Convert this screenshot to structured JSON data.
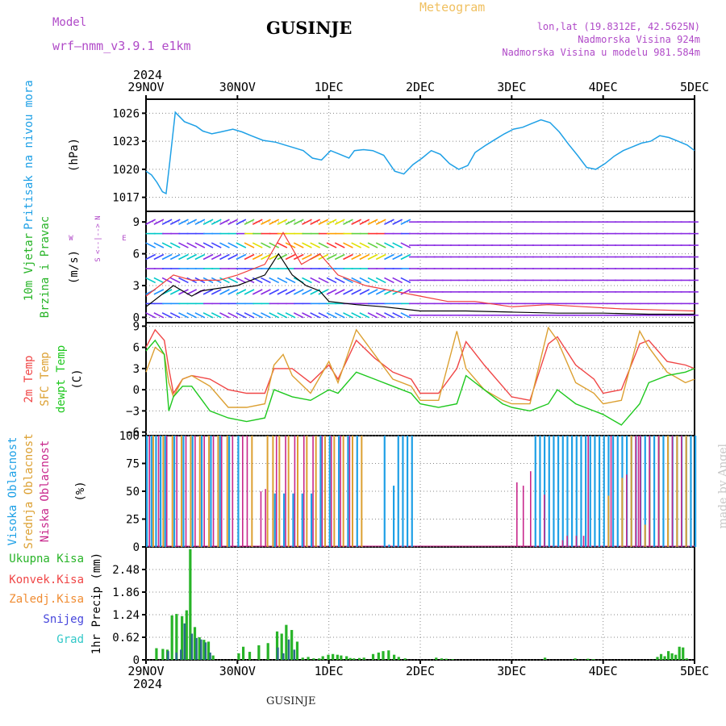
{
  "header": {
    "model_label": "Model",
    "model_version": "wrf–nmm_v3.9.1  e1km",
    "title": "GUSINJE",
    "meteogram_label": "Meteogram",
    "lonlat": "lon,lat (19.8312E, 42.5625N)",
    "elevation": "Nadmorska Visina 924m",
    "model_elevation": "Nadmorska Visina u modelu 981.584m",
    "made_by": "made by Angel",
    "bottom_label": "GUSINJE"
  },
  "time_axis": {
    "year": "2024",
    "ticks": [
      "29NOV",
      "30NOV",
      "1DEC",
      "2DEC",
      "3DEC",
      "4DEC",
      "5DEC"
    ]
  },
  "colors": {
    "pressure": "#1ea0e6",
    "wind_speed": "#000000",
    "wind_gust": "#f03c3c",
    "temp_2m": "#f04646",
    "temp_sfc": "#dca032",
    "temp_dew": "#1ec81e",
    "cloud_high": "#1ea0e6",
    "cloud_mid": "#dca032",
    "cloud_low": "#c8288c",
    "precip_total": "#28b428",
    "precip_conv": "#f04646",
    "precip_frozen": "#f08c32",
    "precip_snow": "#4646dc",
    "precip_graupel": "#32c8c8"
  },
  "chart_data": [
    {
      "type": "line",
      "panel": "pressure",
      "y_title": "Pritisak na nivou mora",
      "ylabel": "(hPa)",
      "ylim": [
        1015.5,
        1027.5
      ],
      "yticks": [
        "1017",
        "1020",
        "1023",
        "1026"
      ],
      "x_days": [
        0,
        0.06,
        0.12,
        0.18,
        0.22,
        0.26,
        0.32,
        0.42,
        0.55,
        0.62,
        0.72,
        0.82,
        0.95,
        1.05,
        1.15,
        1.28,
        1.42,
        1.52,
        1.62,
        1.72,
        1.82,
        1.92,
        2.02,
        2.12,
        2.22,
        2.28,
        2.38,
        2.48,
        2.6,
        2.72,
        2.82,
        2.92,
        3.02,
        3.12,
        3.22,
        3.32,
        3.42,
        3.52,
        3.6,
        3.72,
        3.82,
        3.92,
        4.02,
        4.12,
        4.22,
        4.32,
        4.42,
        4.52,
        4.62,
        4.72,
        4.82,
        4.92,
        5.02,
        5.12,
        5.22,
        5.32,
        5.42,
        5.52,
        5.62,
        5.72,
        5.82,
        5.92,
        6.0
      ],
      "values": [
        1019.8,
        1019.4,
        1018.6,
        1017.6,
        1017.4,
        1020.8,
        1026.1,
        1025.1,
        1024.6,
        1024.1,
        1023.8,
        1024.0,
        1024.3,
        1024.0,
        1023.6,
        1023.1,
        1022.9,
        1022.6,
        1022.3,
        1022.0,
        1021.2,
        1021.0,
        1022.0,
        1021.6,
        1021.2,
        1022.0,
        1022.1,
        1022.0,
        1021.5,
        1019.8,
        1019.5,
        1020.5,
        1021.2,
        1022.0,
        1021.6,
        1020.6,
        1020.0,
        1020.4,
        1021.8,
        1022.6,
        1023.2,
        1023.8,
        1024.3,
        1024.5,
        1024.9,
        1025.3,
        1025.0,
        1024.0,
        1022.7,
        1021.5,
        1020.2,
        1020.0,
        1020.6,
        1021.4,
        1022.0,
        1022.4,
        1022.8,
        1023.0,
        1023.6,
        1023.4,
        1023.0,
        1022.6,
        1022.0
      ]
    },
    {
      "type": "line",
      "panel": "wind",
      "y_title_1": "10m Vjetar",
      "y_title_2": "Brzina i Pravac",
      "ylabel": "(m/s)",
      "ylim": [
        -0.5,
        10
      ],
      "yticks": [
        "0",
        "3",
        "6",
        "9"
      ],
      "compass": [
        "N",
        "^",
        "W",
        "<--|-->",
        "E",
        "v",
        "S"
      ],
      "series": [
        {
          "key": "speed",
          "x_days": [
            0,
            0.3,
            0.4,
            0.5,
            0.6,
            1.0,
            1.3,
            1.45,
            1.6,
            1.75,
            1.9,
            2.0,
            2.3,
            2.6,
            2.8,
            3.0,
            3.5,
            4.0,
            4.5,
            5.0,
            5.5,
            6.0
          ],
          "values": [
            1,
            3,
            2.5,
            2,
            2.5,
            3,
            4,
            6,
            4,
            3,
            2.5,
            1.5,
            1.2,
            1,
            0.8,
            0.6,
            0.6,
            0.5,
            0.4,
            0.4,
            0.3,
            0.3
          ]
        },
        {
          "key": "gust",
          "x_days": [
            0,
            0.3,
            0.5,
            0.8,
            1.0,
            1.3,
            1.5,
            1.7,
            1.9,
            2.1,
            2.4,
            2.7,
            3.0,
            3.3,
            3.6,
            4.0,
            4.4,
            4.8,
            5.2,
            5.6,
            6.0
          ],
          "values": [
            2,
            4,
            3.5,
            3.5,
            4,
            5,
            8,
            5,
            6,
            4,
            3,
            2.5,
            2,
            1.5,
            1.5,
            1,
            1.2,
            1,
            0.8,
            0.7,
            0.6
          ]
        }
      ]
    },
    {
      "type": "line",
      "panel": "temperature",
      "y_title_1": "2m Temp",
      "y_title_2": "SFC Temp",
      "y_title_3": "dewpt Temp",
      "ylabel": "(C)",
      "ylim": [
        -6.5,
        9.5
      ],
      "yticks": [
        "−6",
        "−3",
        "0",
        "3",
        "6",
        "9"
      ],
      "series": [
        {
          "key": "t2m",
          "x_days": [
            0,
            0.1,
            0.2,
            0.25,
            0.3,
            0.4,
            0.5,
            0.7,
            0.9,
            1.1,
            1.3,
            1.4,
            1.6,
            1.8,
            2.0,
            2.1,
            2.3,
            2.5,
            2.7,
            2.9,
            3.0,
            3.2,
            3.4,
            3.5,
            3.7,
            3.9,
            4.0,
            4.2,
            4.4,
            4.5,
            4.7,
            4.9,
            5.0,
            5.2,
            5.4,
            5.5,
            5.7,
            5.9,
            6.0
          ],
          "values": [
            6,
            8.5,
            7,
            3,
            -0.5,
            1.5,
            2,
            1.5,
            0,
            -0.5,
            -0.5,
            3,
            3,
            1,
            3.5,
            1.5,
            7,
            4.5,
            2.5,
            1.5,
            -0.5,
            -0.5,
            3,
            6.8,
            3.5,
            0.5,
            -1,
            -1.5,
            6.5,
            7.5,
            3.5,
            1.5,
            -0.5,
            0,
            6.5,
            7,
            4,
            3.5,
            3
          ]
        },
        {
          "key": "tsfc",
          "x_days": [
            0,
            0.1,
            0.2,
            0.25,
            0.3,
            0.4,
            0.5,
            0.7,
            0.9,
            1.1,
            1.3,
            1.4,
            1.5,
            1.6,
            1.8,
            2.0,
            2.1,
            2.3,
            2.5,
            2.7,
            2.9,
            3.0,
            3.2,
            3.4,
            3.5,
            3.7,
            3.9,
            4.0,
            4.2,
            4.4,
            4.5,
            4.7,
            4.9,
            5.0,
            5.2,
            5.4,
            5.5,
            5.7,
            5.9,
            6.0
          ],
          "values": [
            2.5,
            6,
            5,
            1,
            -1,
            1.5,
            2,
            0.5,
            -2.5,
            -2.5,
            -2,
            3.5,
            5,
            2,
            -0.5,
            4,
            1,
            8.5,
            5,
            1.5,
            0.5,
            -1.5,
            -1.5,
            8.3,
            3,
            0,
            -1.5,
            -2,
            -2,
            8.8,
            7,
            1,
            -0.5,
            -2,
            -1.5,
            8.3,
            6,
            2.5,
            1,
            1.5
          ]
        },
        {
          "key": "dew",
          "x_days": [
            0,
            0.1,
            0.2,
            0.25,
            0.3,
            0.4,
            0.5,
            0.7,
            0.9,
            1.1,
            1.3,
            1.4,
            1.6,
            1.8,
            2.0,
            2.1,
            2.3,
            2.5,
            2.7,
            2.9,
            3.0,
            3.2,
            3.4,
            3.5,
            3.7,
            3.9,
            4.0,
            4.2,
            4.4,
            4.5,
            4.7,
            4.9,
            5.0,
            5.2,
            5.4,
            5.5,
            5.7,
            5.9,
            6.0
          ],
          "values": [
            5.5,
            7,
            5,
            -3,
            -1,
            0.5,
            0.5,
            -3,
            -4,
            -4.5,
            -4,
            0,
            -1,
            -1.5,
            0,
            -0.5,
            2.5,
            1.5,
            0.5,
            -0.5,
            -2,
            -2.5,
            -2,
            2,
            0,
            -2,
            -2.5,
            -3,
            -2,
            0,
            -2,
            -3,
            -3.5,
            -5,
            -2,
            1,
            2,
            2.5,
            3
          ]
        }
      ]
    },
    {
      "type": "bar",
      "panel": "clouds",
      "y_title_1": "Visoka Oblacnost",
      "y_title_2": "Srednja Oblacnost",
      "y_title_3": "Niska Oblacnost",
      "ylabel": "(%)",
      "ylim": [
        0,
        100
      ],
      "yticks": [
        "0",
        "25",
        "50",
        "75",
        "100"
      ],
      "series": [
        {
          "key": "high",
          "x_days": [
            0.0,
            0.05,
            0.1,
            0.15,
            0.2,
            0.3,
            0.4,
            0.5,
            0.6,
            0.7,
            0.8,
            0.9,
            1.0,
            1.4,
            1.5,
            1.6,
            1.7,
            1.8,
            1.9,
            2.0,
            2.1,
            2.2,
            2.3,
            2.6,
            2.65,
            2.7,
            2.75,
            2.8,
            2.85,
            2.9,
            4.25,
            4.3,
            4.35,
            4.4,
            4.45,
            4.5,
            4.55,
            4.6,
            4.65,
            4.7,
            4.75,
            4.8,
            4.85,
            4.9,
            4.95,
            5.0,
            5.05,
            5.1,
            5.15,
            5.2,
            5.25,
            5.3,
            5.35,
            5.4,
            5.45,
            5.5,
            5.55,
            5.6,
            5.65,
            5.7,
            5.75,
            5.8,
            5.85,
            5.9,
            5.95,
            6.0
          ],
          "values": [
            100,
            100,
            100,
            100,
            100,
            100,
            100,
            100,
            100,
            100,
            100,
            100,
            100,
            48,
            48,
            48,
            48,
            48,
            100,
            100,
            100,
            100,
            100,
            100,
            2,
            55,
            100,
            100,
            100,
            100,
            100,
            100,
            100,
            100,
            100,
            100,
            100,
            100,
            100,
            100,
            100,
            100,
            100,
            100,
            100,
            100,
            100,
            100,
            100,
            100,
            100,
            100,
            100,
            100,
            100,
            100,
            100,
            100,
            100,
            100,
            100,
            100,
            100,
            100,
            100,
            100
          ]
        },
        {
          "key": "mid",
          "x_days": [
            0.07,
            0.18,
            0.28,
            0.38,
            0.48,
            0.58,
            0.68,
            0.78,
            0.88,
            1.15,
            1.32,
            1.38,
            1.45,
            1.55,
            1.65,
            1.75,
            1.85,
            1.95,
            2.05,
            2.15,
            2.25,
            2.35,
            5.05,
            5.2,
            5.3,
            5.45,
            5.5,
            5.6,
            5.7,
            5.8,
            5.9
          ],
          "values": [
            100,
            100,
            100,
            100,
            100,
            100,
            100,
            100,
            100,
            100,
            100,
            100,
            100,
            100,
            100,
            100,
            100,
            100,
            100,
            100,
            100,
            100,
            46,
            62,
            100,
            20,
            70,
            100,
            100,
            100,
            100
          ]
        },
        {
          "key": "low",
          "x_days": [
            0.03,
            0.13,
            0.22,
            0.33,
            0.43,
            0.53,
            0.63,
            0.73,
            0.82,
            0.94,
            1.05,
            1.1,
            1.25,
            1.3,
            1.42,
            1.52,
            1.62,
            1.72,
            1.82,
            1.92,
            2.02,
            2.12,
            2.22,
            4.05,
            4.12,
            4.2,
            4.35,
            4.55,
            4.6,
            4.7,
            4.78,
            4.83,
            5.08,
            5.25,
            5.35,
            5.38,
            5.4,
            5.5,
            5.6,
            5.75,
            5.85
          ],
          "values": [
            100,
            100,
            100,
            100,
            100,
            100,
            100,
            100,
            100,
            100,
            100,
            100,
            50,
            52,
            100,
            100,
            100,
            100,
            100,
            100,
            100,
            100,
            100,
            58,
            55,
            68,
            47,
            6,
            10,
            10,
            10,
            100,
            100,
            65,
            100,
            100,
            100,
            100,
            100,
            100,
            100
          ]
        }
      ]
    },
    {
      "type": "bar",
      "panel": "precipitation",
      "legend": [
        "Ukupna  Kisa",
        "Konvek.Kisa",
        "Zaledj.Kisa",
        "Snijeg",
        "Grad"
      ],
      "ylabel": "1hr Precip (mm)",
      "ylim": [
        0,
        3.1
      ],
      "yticks": [
        "0",
        "0.62",
        "1.24",
        "1.86",
        "2.48"
      ],
      "series": [
        {
          "key": "total",
          "x_days": [
            0.1,
            0.17,
            0.22,
            0.27,
            0.32,
            0.38,
            0.43,
            0.47,
            0.52,
            0.57,
            0.62,
            0.67,
            0.72,
            1.0,
            1.05,
            1.12,
            1.22,
            1.32,
            1.42,
            1.47,
            1.52,
            1.58,
            1.64,
            1.7,
            1.76,
            1.82,
            1.88,
            1.92,
            1.98,
            2.03,
            2.08,
            2.12,
            2.18,
            2.22,
            2.26,
            2.32,
            2.37,
            2.47,
            2.53,
            2.58,
            2.64,
            2.7,
            2.75,
            2.82,
            3.16,
            3.22,
            3.27,
            3.34,
            4.35,
            4.68,
            4.82,
            4.88,
            5.58,
            5.62,
            5.66,
            5.7,
            5.74,
            5.78,
            5.82,
            5.86,
            5.9
          ],
          "values": [
            0.32,
            0.3,
            0.28,
            1.22,
            1.26,
            1.2,
            1.36,
            3.04,
            0.9,
            0.62,
            0.55,
            0.5,
            0.12,
            0.18,
            0.36,
            0.22,
            0.4,
            0.46,
            0.78,
            0.72,
            0.96,
            0.82,
            0.5,
            0.06,
            0.08,
            0.04,
            0.04,
            0.1,
            0.14,
            0.16,
            0.14,
            0.12,
            0.1,
            0.05,
            0.04,
            0.05,
            0.06,
            0.16,
            0.2,
            0.24,
            0.26,
            0.14,
            0.08,
            0.04,
            0.06,
            0.04,
            0.03,
            0.02,
            0.06,
            0.04,
            0.03,
            0.02,
            0.08,
            0.16,
            0.1,
            0.24,
            0.18,
            0.14,
            0.36,
            0.34,
            0.04
          ]
        },
        {
          "key": "snow",
          "x_days": [
            0.24,
            0.33,
            0.38,
            0.42,
            0.5,
            0.55,
            0.6,
            0.65,
            0.7,
            1.44,
            1.5,
            1.56,
            1.62
          ],
          "values": [
            0.24,
            0.2,
            0.28,
            1.0,
            0.72,
            0.6,
            0.56,
            0.48,
            0.2,
            0.34,
            0.18,
            0.56,
            0.28
          ]
        }
      ]
    }
  ]
}
